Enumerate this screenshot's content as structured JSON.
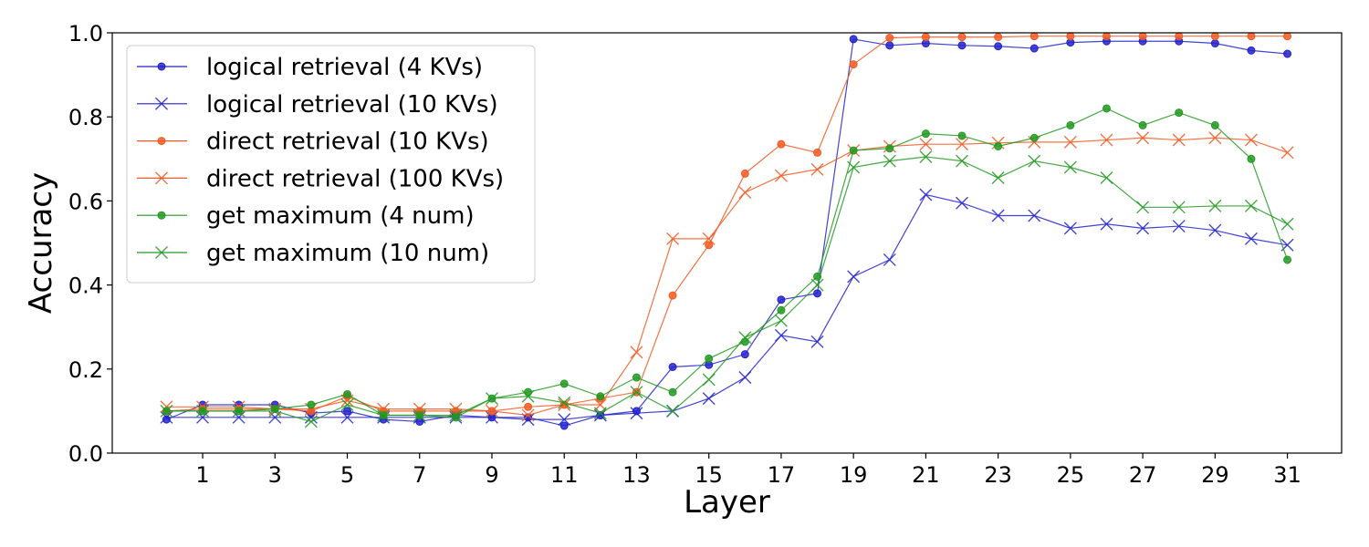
{
  "chart_data": {
    "type": "line",
    "title": "",
    "xlabel": "Layer",
    "ylabel": "Accuracy",
    "xlim": [
      -1.5,
      32.5
    ],
    "ylim": [
      0.0,
      1.0
    ],
    "xticks": [
      1,
      3,
      5,
      7,
      9,
      11,
      13,
      15,
      17,
      19,
      21,
      23,
      25,
      27,
      29,
      31
    ],
    "yticks": [
      0.0,
      0.2,
      0.4,
      0.6,
      0.8,
      1.0
    ],
    "ytick_labels": [
      "0.0",
      "0.2",
      "0.4",
      "0.6",
      "0.8",
      "1.0"
    ],
    "grid": false,
    "legend_position": "top-left",
    "x": [
      0,
      1,
      2,
      3,
      4,
      5,
      6,
      7,
      8,
      9,
      10,
      11,
      12,
      13,
      14,
      15,
      16,
      17,
      18,
      19,
      20,
      21,
      22,
      23,
      24,
      25,
      26,
      27,
      28,
      29,
      30,
      31
    ],
    "series": [
      {
        "name": "logical retrieval (4 KVs)",
        "color": "#2222cc",
        "marker": "circle",
        "values": [
          0.08,
          0.115,
          0.115,
          0.115,
          0.095,
          0.1,
          0.08,
          0.075,
          0.09,
          0.085,
          0.085,
          0.065,
          0.09,
          0.1,
          0.205,
          0.21,
          0.235,
          0.365,
          0.38,
          0.985,
          0.97,
          0.975,
          0.97,
          0.968,
          0.963,
          0.977,
          0.98,
          0.98,
          0.98,
          0.975,
          0.958,
          0.95
        ]
      },
      {
        "name": "logical retrieval (10 KVs)",
        "color": "#2222cc",
        "marker": "x",
        "values": [
          0.085,
          0.085,
          0.085,
          0.085,
          0.085,
          0.085,
          0.085,
          0.085,
          0.085,
          0.085,
          0.08,
          0.08,
          0.09,
          0.095,
          0.1,
          0.13,
          0.18,
          0.28,
          0.265,
          0.42,
          0.46,
          0.615,
          0.595,
          0.565,
          0.565,
          0.535,
          0.545,
          0.535,
          0.54,
          0.53,
          0.51,
          0.495
        ]
      },
      {
        "name": "direct retrieval (10 KVs)",
        "color": "#f15a22",
        "marker": "circle",
        "values": [
          0.1,
          0.105,
          0.105,
          0.105,
          0.1,
          0.135,
          0.1,
          0.1,
          0.1,
          0.1,
          0.11,
          0.115,
          0.13,
          0.145,
          0.375,
          0.495,
          0.665,
          0.735,
          0.715,
          0.925,
          0.988,
          0.99,
          0.99,
          0.99,
          0.992,
          0.992,
          0.992,
          0.992,
          0.992,
          0.992,
          0.992,
          0.992
        ]
      },
      {
        "name": "direct retrieval (100 KVs)",
        "color": "#f15a22",
        "marker": "x",
        "values": [
          0.11,
          0.11,
          0.11,
          0.105,
          0.105,
          0.125,
          0.105,
          0.105,
          0.105,
          0.1,
          0.09,
          0.115,
          0.115,
          0.24,
          0.51,
          0.51,
          0.62,
          0.66,
          0.675,
          0.72,
          0.73,
          0.735,
          0.735,
          0.738,
          0.74,
          0.74,
          0.745,
          0.75,
          0.745,
          0.75,
          0.745,
          0.715
        ]
      },
      {
        "name": "get maximum (4 num)",
        "color": "#229922",
        "marker": "circle",
        "values": [
          0.1,
          0.1,
          0.1,
          0.105,
          0.115,
          0.14,
          0.09,
          0.09,
          0.085,
          0.13,
          0.145,
          0.165,
          0.135,
          0.18,
          0.145,
          0.225,
          0.265,
          0.34,
          0.42,
          0.72,
          0.725,
          0.76,
          0.755,
          0.73,
          0.75,
          0.78,
          0.82,
          0.78,
          0.81,
          0.78,
          0.7,
          0.46
        ]
      },
      {
        "name": "get maximum (10 num)",
        "color": "#229922",
        "marker": "x",
        "values": [
          0.1,
          0.1,
          0.1,
          0.1,
          0.075,
          0.115,
          0.09,
          0.09,
          0.09,
          0.13,
          0.135,
          0.12,
          0.095,
          0.145,
          0.1,
          0.175,
          0.275,
          0.315,
          0.4,
          0.68,
          0.695,
          0.705,
          0.695,
          0.655,
          0.695,
          0.68,
          0.655,
          0.585,
          0.585,
          0.588,
          0.588,
          0.545
        ]
      }
    ]
  }
}
